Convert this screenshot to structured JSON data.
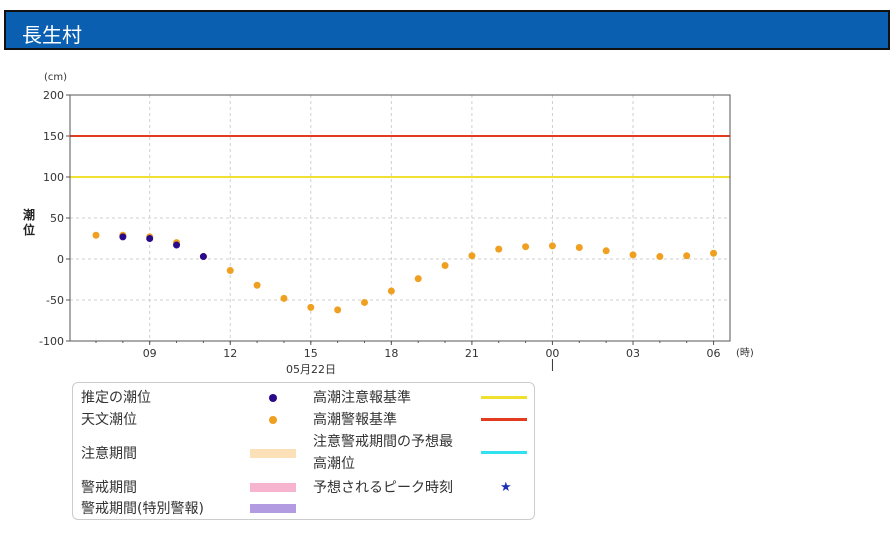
{
  "header": {
    "title": "長生村"
  },
  "chart_data": {
    "type": "scatter",
    "yunit": "(cm)",
    "xunit": "(時)",
    "ylabel": "潮位",
    "date_label": "05月22日",
    "ylim": [
      -100,
      200
    ],
    "yticks": [
      -100,
      -50,
      0,
      50,
      100,
      150,
      200
    ],
    "x_tick_labels": [
      "09",
      "12",
      "15",
      "18",
      "21",
      "00",
      "03",
      "06"
    ],
    "thresholds": [
      {
        "name": "高潮警報基準",
        "value": 150,
        "color": "#e33b1f"
      },
      {
        "name": "高潮注意報基準",
        "value": 100,
        "color": "#f0e030"
      }
    ],
    "series": [
      {
        "name": "天文潮位",
        "color": "#f0a020",
        "x": [
          "07:00",
          "08:00",
          "09:00",
          "10:00",
          "11:00",
          "12:00",
          "13:00",
          "14:00",
          "15:00",
          "16:00",
          "17:00",
          "18:00",
          "19:00",
          "20:00",
          "21:00",
          "22:00",
          "23:00",
          "00:00",
          "01:00",
          "02:00",
          "03:00",
          "04:00",
          "05:00",
          "06:00"
        ],
        "values": [
          29,
          29,
          27,
          20,
          3,
          -14,
          -32,
          -48,
          -59,
          -62,
          -53,
          -39,
          -24,
          -8,
          4,
          12,
          15,
          16,
          14,
          10,
          5,
          3,
          4,
          7
        ]
      },
      {
        "name": "推定の潮位",
        "color": "#2a0a8a",
        "x": [
          "08:00",
          "09:00",
          "10:00",
          "11:00"
        ],
        "values": [
          27,
          25,
          17,
          3
        ]
      }
    ]
  },
  "legend": {
    "estimated": "推定の潮位",
    "astronomical": "天文潮位",
    "caution_period": "注意期間",
    "warning_period": "警戒期間",
    "special_warning_period": "警戒期間(特別警報)",
    "advisory_level": "高潮注意報基準",
    "warning_level": "高潮警報基準",
    "max_forecast_line1": "注意警戒期間の予想最",
    "max_forecast_line2": "高潮位",
    "peak_time": "予想されるピーク時刻",
    "colors": {
      "estimated": "#2a0a8a",
      "astronomical": "#f0a020",
      "caution_period": "#fbe0b8",
      "warning_period": "#f7b4cf",
      "special_warning_period": "#b29be0",
      "advisory_level": "#f0e030",
      "warning_level": "#e33b1f",
      "max_forecast": "#32e0f0",
      "peak_time": "#1b2fb7"
    }
  }
}
